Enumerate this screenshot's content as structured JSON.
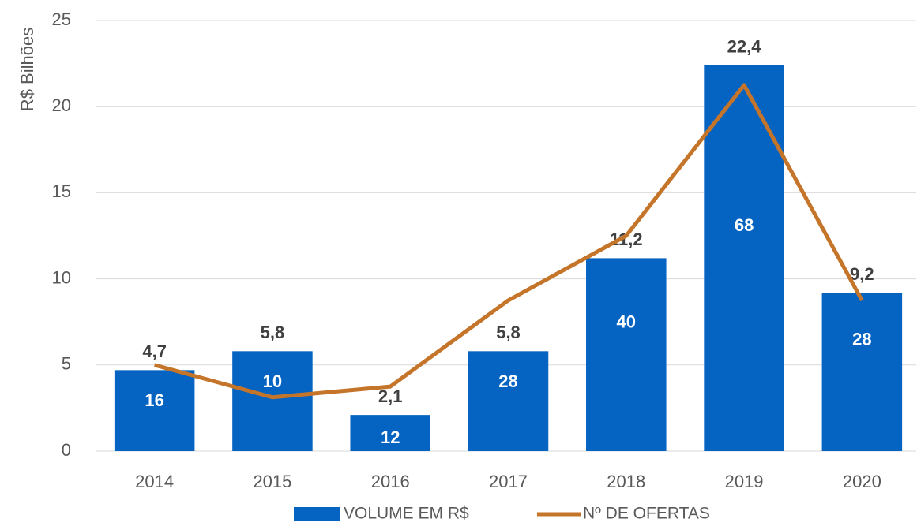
{
  "chart_data": {
    "type": "bar",
    "y_label": "R$ Bilhões",
    "categories": [
      "2014",
      "2015",
      "2016",
      "2017",
      "2018",
      "2019",
      "2020"
    ],
    "series": [
      {
        "name": "VOLUME EM R$",
        "type": "bar",
        "color": "#0563c1",
        "values": [
          4.7,
          5.8,
          2.1,
          5.8,
          11.2,
          22.4,
          9.2
        ],
        "value_labels": [
          "4,7",
          "5,8",
          "2,1",
          "5,8",
          "11,2",
          "22,4",
          "9,2"
        ]
      },
      {
        "name": "Nº DE OFERTAS",
        "type": "line",
        "color": "#c5752a",
        "axis": "y2",
        "values": [
          16,
          10,
          12,
          28,
          40,
          68,
          28
        ]
      }
    ],
    "ylim": [
      0,
      25
    ],
    "yticks": [
      0,
      5,
      10,
      15,
      20,
      25
    ],
    "y2lim": [
      0,
      80
    ],
    "grid": true,
    "legend": "bottom"
  }
}
